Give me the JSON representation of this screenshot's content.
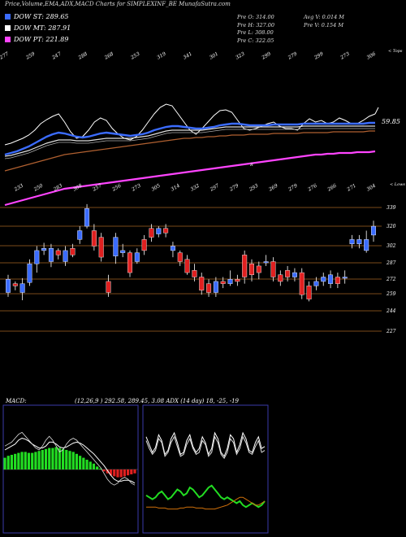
{
  "header": {
    "title": "Price,Volume,EMA,ADX,MACD Charts for SIMPLEXINF_BE MunafaSutra.com"
  },
  "legend": [
    {
      "label": "DOW ST: 289.65",
      "color": "#3b6cff"
    },
    {
      "label": "DOW MT: 287.91",
      "color": "#ffffff"
    },
    {
      "label": "DOW PT: 221.89",
      "color": "#ff44ff"
    }
  ],
  "stats": {
    "open": "Pre   O: 314.00",
    "high": "Pre   H: 327.00",
    "low": "Pre   L: 308.00",
    "close": "Pre   C: 322.05",
    "avg_volume": "Avg V: 0.014   M",
    "prev_volume": "Pre   V: 0.154   M"
  },
  "price_panel": {
    "top_right_label": "< Tops",
    "bottom_right_label": "< Lows",
    "last_value_label": "59.85",
    "ma_marker": "R"
  },
  "macd_panel": {
    "label": "MACD:",
    "params": "(12,26,9 ) 292.58, 289.45, 3.08 ADX            (14  day) 18, -25, -19"
  },
  "chart_data": [
    {
      "type": "line",
      "name": "price-ema",
      "top_labels": [
        "277",
        "259",
        "247",
        "288",
        "268",
        "253",
        "319",
        "341",
        "301",
        "323",
        "299",
        "279",
        "299",
        "273",
        "306"
      ],
      "bottom_labels": [
        "233",
        "250",
        "283",
        "308",
        "257",
        "256",
        "273",
        "305",
        "314",
        "332",
        "297",
        "279",
        "293",
        "269",
        "279",
        "276",
        "266",
        "271",
        "304"
      ],
      "overlays": [
        {
          "name": "price",
          "color": "#ffffff",
          "values": [
            178,
            176,
            173,
            170,
            166,
            160,
            152,
            147,
            143,
            140,
            150,
            162,
            170,
            168,
            160,
            150,
            145,
            148,
            158,
            165,
            170,
            172,
            168,
            160,
            150,
            140,
            132,
            128,
            130,
            140,
            150,
            160,
            165,
            158,
            150,
            142,
            136,
            135,
            138,
            148,
            158,
            160,
            158,
            155,
            152,
            150,
            155,
            158,
            158,
            160,
            152,
            146,
            150,
            148,
            152,
            150,
            145,
            148,
            152,
            152,
            148,
            143,
            140
          ]
        },
        {
          "name": "ema-fast",
          "color": "#3b6cff",
          "values": [
            190,
            188,
            186,
            183,
            180,
            176,
            172,
            168,
            165,
            163,
            164,
            166,
            168,
            169,
            168,
            166,
            164,
            163,
            164,
            165,
            166,
            167,
            166,
            165,
            163,
            160,
            158,
            156,
            155,
            155,
            156,
            157,
            158,
            158,
            157,
            156,
            154,
            153,
            152,
            152,
            153,
            154,
            154,
            154,
            154,
            153,
            153,
            153,
            153,
            153,
            152,
            152,
            152,
            152,
            152,
            152,
            152,
            152,
            152,
            152,
            152,
            151,
            151
          ]
        },
        {
          "name": "ema-mid",
          "color": "#dddddd",
          "values": [
            192,
            191,
            189,
            187,
            185,
            182,
            179,
            176,
            174,
            172,
            172,
            172,
            173,
            173,
            173,
            172,
            171,
            170,
            170,
            170,
            170,
            170,
            169,
            168,
            167,
            165,
            163,
            161,
            160,
            160,
            160,
            160,
            160,
            160,
            159,
            158,
            157,
            156,
            156,
            156,
            156,
            156,
            156,
            156,
            156,
            156,
            156,
            156,
            156,
            156,
            155,
            155,
            155,
            155,
            155,
            155,
            155,
            155,
            155,
            155,
            155,
            155,
            155
          ]
        },
        {
          "name": "ema-slow",
          "color": "#b06030",
          "values": [
            210,
            208,
            206,
            204,
            202,
            200,
            198,
            196,
            194,
            192,
            190,
            189,
            188,
            187,
            186,
            185,
            184,
            183,
            182,
            181,
            180,
            179,
            178,
            177,
            176,
            175,
            174,
            173,
            172,
            171,
            170,
            170,
            169,
            169,
            168,
            168,
            167,
            167,
            166,
            166,
            166,
            165,
            165,
            165,
            165,
            164,
            164,
            164,
            164,
            164,
            163,
            163,
            163,
            163,
            163,
            162,
            162,
            162,
            162,
            162,
            162,
            161,
            161
          ]
        },
        {
          "name": "ema-long",
          "color": "#ff44ff",
          "values": [
            252,
            250,
            248,
            246,
            244,
            242,
            240,
            238,
            236,
            234,
            232,
            231,
            230,
            229,
            228,
            227,
            226,
            225,
            224,
            223,
            222,
            221,
            220,
            219,
            218,
            217,
            216,
            215,
            214,
            213,
            212,
            211,
            210,
            209,
            208,
            207,
            206,
            205,
            204,
            203,
            202,
            201,
            200,
            199,
            198,
            197,
            196,
            195,
            194,
            193,
            192,
            191,
            190,
            190,
            189,
            189,
            188,
            188,
            188,
            187,
            187,
            187,
            186
          ]
        }
      ]
    },
    {
      "type": "candlestick",
      "name": "price-candles",
      "ylabels": [
        "339",
        "320",
        "302",
        "287",
        "272",
        "259",
        "244",
        "227"
      ],
      "candles": [
        {
          "o": 262,
          "c": 274,
          "h": 278,
          "l": 258
        },
        {
          "o": 270,
          "c": 268,
          "h": 272,
          "l": 264
        },
        {
          "o": 262,
          "c": 270,
          "h": 275,
          "l": 255
        },
        {
          "o": 271,
          "c": 288,
          "h": 292,
          "l": 268
        },
        {
          "o": 288,
          "c": 300,
          "h": 304,
          "l": 280
        },
        {
          "o": 300,
          "c": 302,
          "h": 307,
          "l": 296
        },
        {
          "o": 290,
          "c": 302,
          "h": 306,
          "l": 285
        },
        {
          "o": 300,
          "c": 296,
          "h": 302,
          "l": 292
        },
        {
          "o": 290,
          "c": 300,
          "h": 304,
          "l": 286
        },
        {
          "o": 302,
          "c": 296,
          "h": 306,
          "l": 294
        },
        {
          "o": 310,
          "c": 318,
          "h": 322,
          "l": 306
        },
        {
          "o": 322,
          "c": 338,
          "h": 342,
          "l": 320
        },
        {
          "o": 318,
          "c": 304,
          "h": 324,
          "l": 300
        },
        {
          "o": 312,
          "c": 294,
          "h": 316,
          "l": 290
        },
        {
          "o": 272,
          "c": 262,
          "h": 278,
          "l": 258
        },
        {
          "o": 295,
          "c": 312,
          "h": 316,
          "l": 288
        },
        {
          "o": 298,
          "c": 300,
          "h": 306,
          "l": 294
        },
        {
          "o": 298,
          "c": 280,
          "h": 300,
          "l": 276
        },
        {
          "o": 290,
          "c": 298,
          "h": 302,
          "l": 288
        },
        {
          "o": 310,
          "c": 300,
          "h": 314,
          "l": 296
        },
        {
          "o": 320,
          "c": 312,
          "h": 324,
          "l": 308
        },
        {
          "o": 315,
          "c": 320,
          "h": 322,
          "l": 312
        },
        {
          "o": 320,
          "c": 316,
          "h": 324,
          "l": 312
        },
        {
          "o": 300,
          "c": 304,
          "h": 308,
          "l": 294
        },
        {
          "o": 298,
          "c": 290,
          "h": 300,
          "l": 286
        },
        {
          "o": 292,
          "c": 280,
          "h": 296,
          "l": 278
        },
        {
          "o": 282,
          "c": 276,
          "h": 288,
          "l": 272
        },
        {
          "o": 276,
          "c": 264,
          "h": 280,
          "l": 260
        },
        {
          "o": 270,
          "c": 262,
          "h": 274,
          "l": 258
        },
        {
          "o": 262,
          "c": 272,
          "h": 276,
          "l": 258
        },
        {
          "o": 272,
          "c": 270,
          "h": 276,
          "l": 266
        },
        {
          "o": 270,
          "c": 274,
          "h": 282,
          "l": 268
        },
        {
          "o": 274,
          "c": 272,
          "h": 278,
          "l": 268
        },
        {
          "o": 296,
          "c": 276,
          "h": 300,
          "l": 270
        },
        {
          "o": 288,
          "c": 278,
          "h": 292,
          "l": 272
        },
        {
          "o": 286,
          "c": 280,
          "h": 290,
          "l": 274
        },
        {
          "o": 290,
          "c": 290,
          "h": 296,
          "l": 286
        },
        {
          "o": 290,
          "c": 276,
          "h": 294,
          "l": 272
        },
        {
          "o": 278,
          "c": 272,
          "h": 282,
          "l": 268
        },
        {
          "o": 282,
          "c": 276,
          "h": 286,
          "l": 272
        },
        {
          "o": 276,
          "c": 280,
          "h": 284,
          "l": 272
        },
        {
          "o": 280,
          "c": 260,
          "h": 284,
          "l": 256
        },
        {
          "o": 268,
          "c": 256,
          "h": 272,
          "l": 254
        },
        {
          "o": 268,
          "c": 272,
          "h": 276,
          "l": 264
        },
        {
          "o": 272,
          "c": 276,
          "h": 280,
          "l": 268
        },
        {
          "o": 270,
          "c": 278,
          "h": 282,
          "l": 266
        },
        {
          "o": 276,
          "c": 270,
          "h": 280,
          "l": 266
        },
        {
          "o": 276,
          "c": 276,
          "h": 282,
          "l": 270
        },
        {
          "o": 306,
          "c": 310,
          "h": 314,
          "l": 302
        },
        {
          "o": 306,
          "c": 310,
          "h": 314,
          "l": 302
        },
        {
          "o": 300,
          "c": 310,
          "h": 318,
          "l": 298
        },
        {
          "o": 314,
          "c": 322,
          "h": 327,
          "l": 308
        }
      ]
    },
    {
      "type": "bar",
      "name": "macd",
      "histogram": [
        12,
        14,
        15,
        16,
        17,
        18,
        18,
        17,
        17,
        18,
        19,
        20,
        21,
        22,
        22,
        23,
        22,
        21,
        20,
        19,
        18,
        16,
        14,
        12,
        10,
        8,
        6,
        3,
        1,
        -2,
        -4,
        -6,
        -7,
        -8,
        -8,
        -7,
        -6,
        -5,
        -4
      ],
      "macd_line": [
        24,
        26,
        28,
        32,
        36,
        38,
        34,
        30,
        26,
        22,
        20,
        24,
        30,
        34,
        30,
        24,
        18,
        20,
        26,
        30,
        32,
        30,
        26,
        22,
        18,
        14,
        10,
        6,
        2,
        -4,
        -10,
        -14,
        -16,
        -14,
        -10,
        -8,
        -10,
        -14,
        -16
      ],
      "signal_line": [
        20,
        22,
        24,
        26,
        30,
        32,
        31,
        29,
        26,
        24,
        22,
        22,
        24,
        28,
        28,
        26,
        23,
        22,
        23,
        25,
        27,
        28,
        27,
        25,
        22,
        19,
        16,
        12,
        8,
        4,
        -1,
        -6,
        -10,
        -12,
        -12,
        -11,
        -11,
        -12,
        -14
      ]
    },
    {
      "type": "line",
      "name": "adx",
      "series": [
        {
          "name": "DI+",
          "color": "#ffffff",
          "values": [
            46,
            38,
            30,
            35,
            48,
            42,
            28,
            32,
            44,
            50,
            40,
            28,
            30,
            42,
            48,
            36,
            30,
            34,
            46,
            40,
            28,
            34,
            50,
            44,
            30,
            26,
            34,
            48,
            44,
            30,
            38,
            50,
            44,
            32,
            30,
            40,
            46,
            34,
            36
          ]
        },
        {
          "name": "DI-",
          "color": "#dddddd",
          "values": [
            42,
            34,
            28,
            32,
            44,
            40,
            26,
            30,
            40,
            46,
            36,
            26,
            28,
            38,
            44,
            34,
            28,
            30,
            42,
            38,
            26,
            30,
            46,
            40,
            28,
            24,
            30,
            44,
            40,
            28,
            34,
            46,
            40,
            30,
            28,
            36,
            42,
            30,
            32
          ]
        },
        {
          "name": "ADX",
          "color": "#22dd22",
          "values": [
            -14,
            -16,
            -18,
            -16,
            -12,
            -10,
            -14,
            -18,
            -16,
            -12,
            -8,
            -10,
            -14,
            -12,
            -6,
            -8,
            -12,
            -16,
            -14,
            -10,
            -6,
            -4,
            -8,
            -12,
            -16,
            -18,
            -16,
            -18,
            -20,
            -22,
            -20,
            -24,
            -26,
            -24,
            -22,
            -24,
            -26,
            -24,
            -20
          ]
        },
        {
          "name": "ADX-2",
          "color": "#d0700a",
          "values": [
            -26,
            -26,
            -26,
            -26,
            -27,
            -27,
            -27,
            -28,
            -28,
            -28,
            -28,
            -27,
            -27,
            -26,
            -26,
            -26,
            -27,
            -27,
            -27,
            -28,
            -28,
            -28,
            -28,
            -27,
            -26,
            -25,
            -24,
            -22,
            -20,
            -18,
            -16,
            -16,
            -18,
            -20,
            -22,
            -24,
            -24,
            -22,
            -20
          ]
        }
      ]
    }
  ]
}
